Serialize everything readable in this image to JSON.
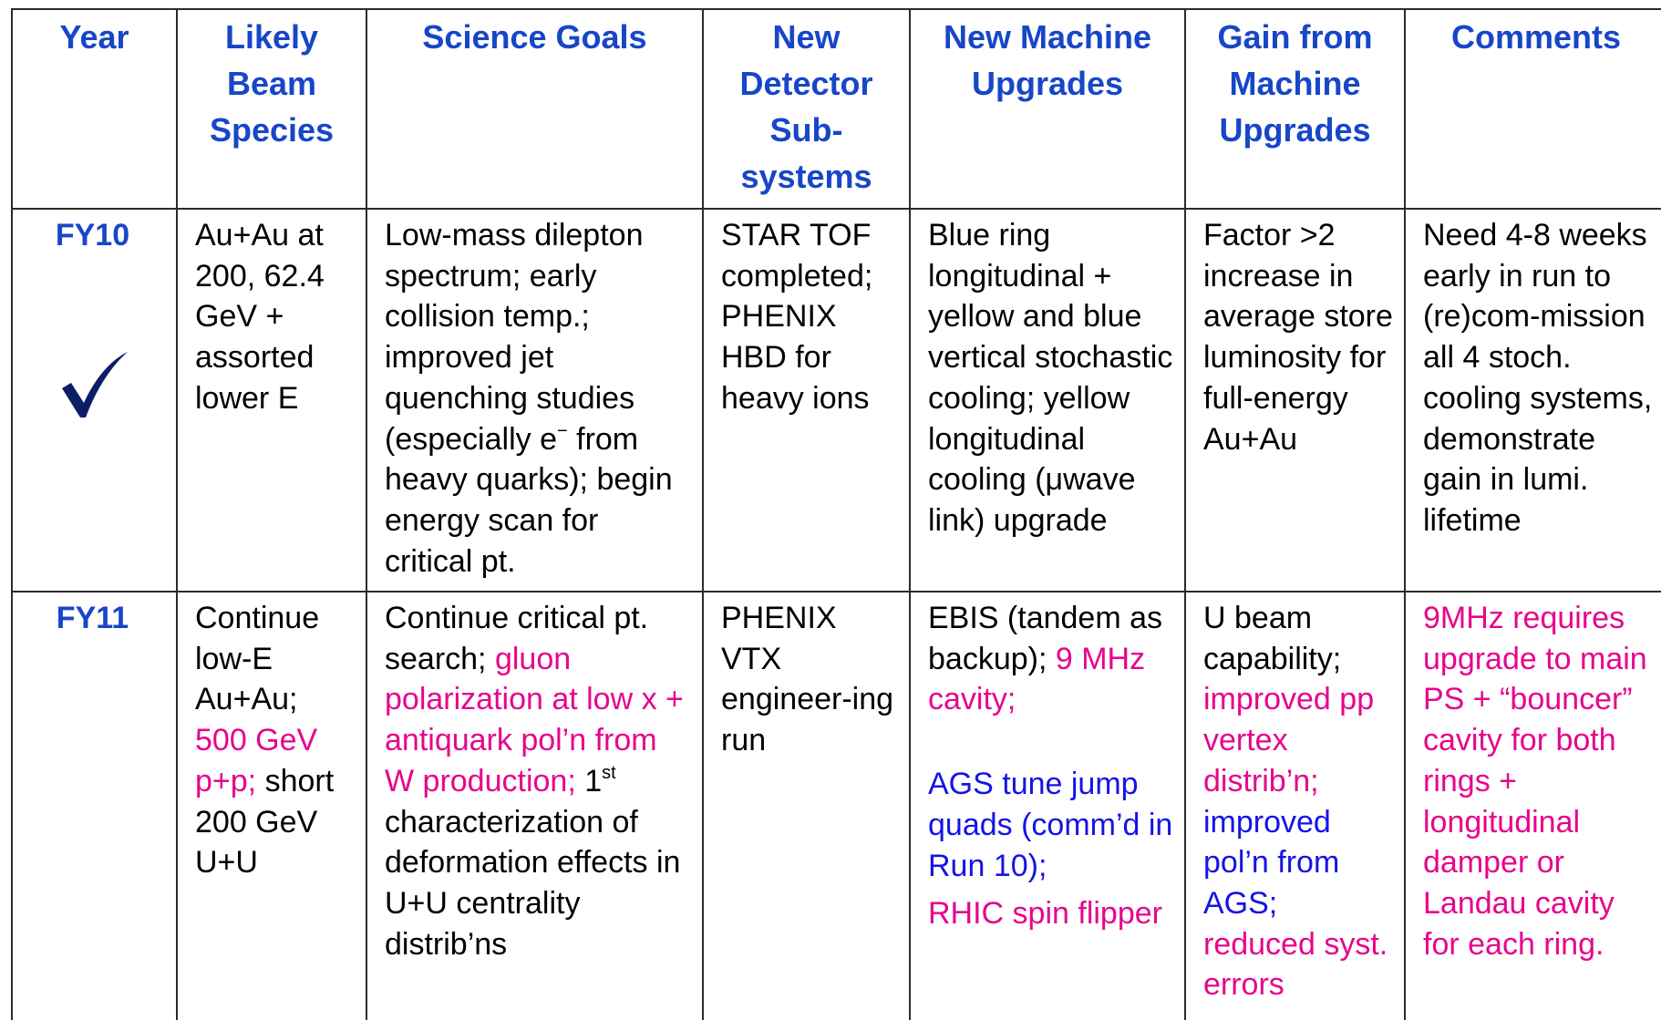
{
  "table": {
    "header": [
      "Year",
      "Likely Beam Species",
      "Science Goals",
      "New Detector Sub-systems",
      "New Machine Upgrades",
      "Gain from Machine Upgrades",
      "Comments"
    ],
    "rows": [
      {
        "year": "FY10",
        "cells": [
          [
            [
              {
                "text": "Au+Au at 200, 62.4 GeV + assorted lower E"
              }
            ]
          ],
          [
            [
              {
                "text": "Low-mass dilepton spectrum; early collision temp.; improved jet quenching studies (especially e"
              },
              {
                "text": "−",
                "sup": true
              },
              {
                "text": " from heavy quarks); begin energy scan for critical pt."
              }
            ]
          ],
          [
            [
              {
                "text": "STAR TOF completed; PHENIX HBD for heavy ions"
              }
            ]
          ],
          [
            [
              {
                "text": "Blue ring longitudinal + yellow and blue vertical stochastic cooling; yellow longitudinal cooling (μwave link) upgrade"
              }
            ]
          ],
          [
            [
              {
                "text": "Factor >2 increase in average store luminosity for full-energy Au+Au"
              }
            ]
          ],
          [
            [
              {
                "text": "Need 4-8 weeks early in run to (re)com-mission all 4 stoch. cooling systems, demonstrate gain in lumi. lifetime"
              }
            ]
          ]
        ]
      },
      {
        "year": "FY11",
        "cells": [
          [
            [
              {
                "text": "Continue low-E Au+Au; "
              },
              {
                "text": "500 GeV p+p;",
                "color": "#e6058c"
              },
              {
                "text": " short 200 GeV U+U"
              }
            ]
          ],
          [
            [
              {
                "text": "Continue critical pt. search; "
              },
              {
                "text": "gluon polarization at low x + antiquark pol’n from W production;",
                "color": "#e6058c"
              },
              {
                "text": " 1"
              },
              {
                "text": "st",
                "sup": true
              },
              {
                "text": " characterization of deformation effects in U+U centrality distrib’ns"
              }
            ]
          ],
          [
            [
              {
                "text": "PHENIX VTX engineer-ing run"
              }
            ]
          ],
          [
            [
              {
                "text": "EBIS (tandem as backup); "
              },
              {
                "text": "9 MHz cavity;",
                "color": "#e6058c"
              }
            ],
            [
              {
                "text": "AGS tune jump quads (comm’d in Run 10);",
                "color": "#1414e6"
              }
            ],
            [
              {
                "text": "RHIC spin flipper",
                "color": "#e6058c"
              }
            ]
          ],
          [
            [
              {
                "text": "U beam capability; "
              },
              {
                "text": "improved pp vertex distrib’n; ",
                "color": "#e6058c"
              },
              {
                "text": "improved pol’n from AGS; ",
                "color": "#1414e6"
              },
              {
                "text": "reduced syst. errors",
                "color": "#e6058c"
              }
            ]
          ],
          [
            [
              {
                "text": "9MHz requires upgrade to main PS + “bouncer” cavity for both rings + longitudinal damper or Landau cavity for each ring.",
                "color": "#e6058c"
              }
            ]
          ]
        ]
      }
    ]
  }
}
